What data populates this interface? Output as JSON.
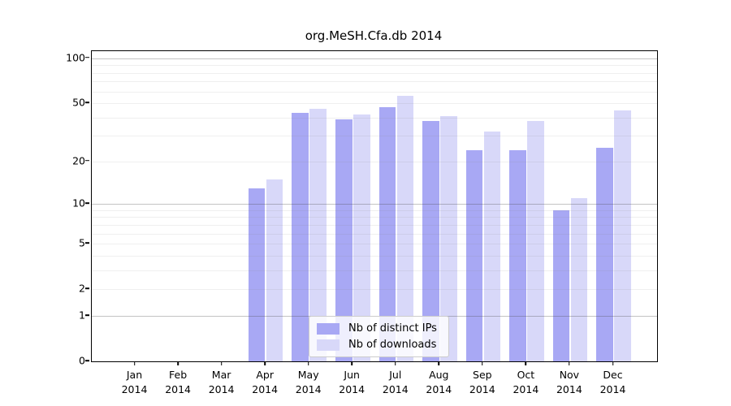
{
  "title": "org.MeSH.Cfa.db 2014",
  "chart_data": {
    "type": "bar",
    "title": "org.MeSH.Cfa.db 2014",
    "xlabel": "",
    "ylabel": "",
    "scale": "log1p",
    "ylim": [
      0,
      100
    ],
    "yticks": [
      100,
      50,
      20,
      10,
      5,
      2,
      1,
      0
    ],
    "grid": "horizontal, minor light + major darker at 1/10/100",
    "legend_position": "lower center",
    "year": "2014",
    "categories": [
      "Jan",
      "Feb",
      "Mar",
      "Apr",
      "May",
      "Jun",
      "Jul",
      "Aug",
      "Sep",
      "Oct",
      "Nov",
      "Dec"
    ],
    "series": [
      {
        "name": "Nb of distinct IPs",
        "color": "#a8a8f4",
        "values": [
          0,
          0,
          0,
          13,
          43,
          39,
          47,
          38,
          24,
          24,
          9,
          25
        ]
      },
      {
        "name": "Nb of downloads",
        "color": "#d8d8f9",
        "values": [
          0,
          0,
          0,
          15,
          46,
          42,
          56,
          41,
          32,
          38,
          11,
          45
        ]
      }
    ]
  }
}
